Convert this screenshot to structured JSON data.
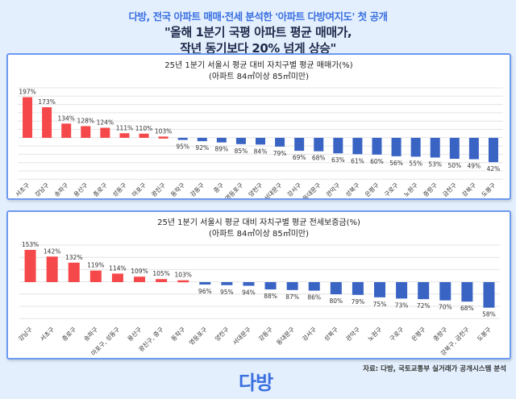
{
  "header": {
    "subtitle": "다방, 전국 아파트 매매·전세 분석한 '아파트 다방여지도' 첫 공개",
    "title_line1": "\"올해 1분기 국평 아파트 평균 매매가,",
    "title_line2": "작년 동기보다 20% 넘게 상승\""
  },
  "colors": {
    "above": "#f5484a",
    "below": "#3a64c4",
    "accent": "#3a6fe0"
  },
  "chart_data": [
    {
      "type": "bar",
      "title": "25년 1분기 서울시 평균 대비 자치구별 평균 매매가(%)",
      "subtitle": "(아파트 84㎡이상 85㎡미만)",
      "baseline": 100,
      "ylim": [
        20,
        210
      ],
      "grid": true,
      "categories": [
        "서초구",
        "강남구",
        "송파구",
        "용산구",
        "종로구",
        "성동구",
        "마포구",
        "광진구",
        "동작구",
        "강동구",
        "중구",
        "영등포구",
        "양천구",
        "서대문구",
        "강서구",
        "동대문구",
        "관악구",
        "성북구",
        "은평구",
        "구로구",
        "노원구",
        "중랑구",
        "금천구",
        "강북구",
        "도봉구"
      ],
      "values": [
        197,
        173,
        134,
        128,
        124,
        111,
        110,
        103,
        95,
        92,
        89,
        85,
        84,
        79,
        69,
        68,
        63,
        61,
        60,
        56,
        55,
        53,
        50,
        49,
        42
      ],
      "labels": [
        "197%",
        "173%",
        "134%",
        "128%",
        "124%",
        "111%",
        "110%",
        "103%",
        "95%",
        "92%",
        "89%",
        "85%",
        "84%",
        "79%",
        "69%",
        "68%",
        "63%",
        "61%",
        "60%",
        "56%",
        "55%",
        "53%",
        "50%",
        "49%",
        "42%"
      ]
    },
    {
      "type": "bar",
      "title": "25년 1분기 서울시 평균 대비 자치구별 평균 전세보증금(%)",
      "subtitle": "(아파트 84㎡이상 85㎡미만)",
      "baseline": 100,
      "ylim": [
        40,
        180
      ],
      "grid": true,
      "categories": [
        "강남구",
        "서초구",
        "종로구",
        "송파구",
        "마포구, 성동구",
        "용산구",
        "광진구, 중구",
        "동작구",
        "영등포구",
        "양천구",
        "서대문구",
        "강동구",
        "동대문구",
        "강서구",
        "성북구",
        "관악구",
        "노원구",
        "구로구",
        "은평구",
        "중랑구",
        "강북구, 금천구",
        "도봉구"
      ],
      "values": [
        153,
        142,
        132,
        119,
        114,
        109,
        105,
        103,
        96,
        95,
        94,
        88,
        87,
        86,
        80,
        79,
        75,
        73,
        72,
        70,
        68,
        58
      ],
      "labels": [
        "153%",
        "142%",
        "132%",
        "119%",
        "114%",
        "109%",
        "105%",
        "103%",
        "96%",
        "95%",
        "94%",
        "88%",
        "87%",
        "86%",
        "80%",
        "79%",
        "75%",
        "73%",
        "72%",
        "70%",
        "68%",
        "58%"
      ]
    }
  ],
  "footer": {
    "source": "자료: 다방, 국토교통부 실거래가 공개시스템 분석",
    "logo": "다방"
  }
}
